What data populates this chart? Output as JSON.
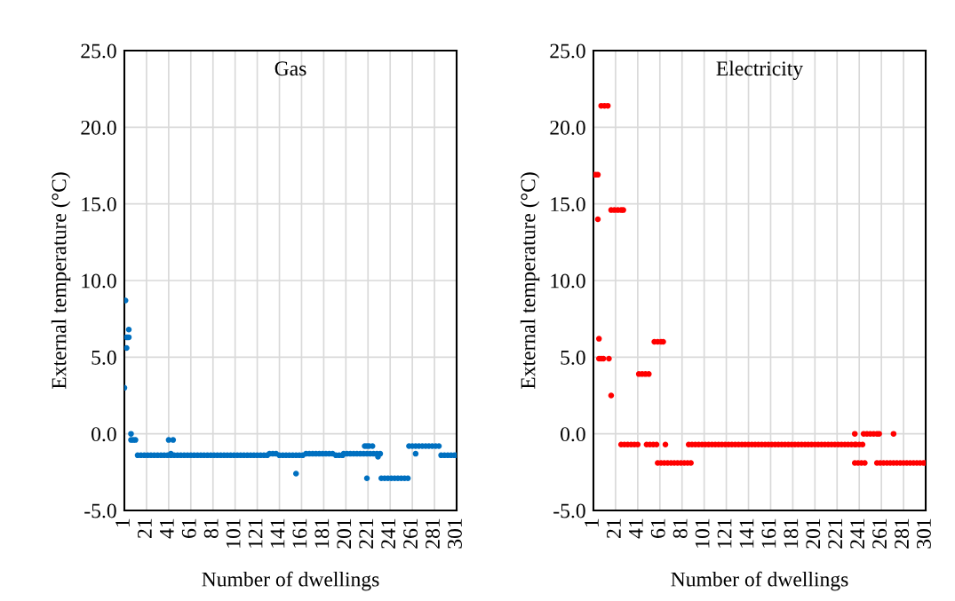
{
  "chart_data": [
    {
      "type": "scatter",
      "title": "Gas",
      "xlabel": "Number of dwellings",
      "ylabel": "External temperature (°C)",
      "grid": true,
      "marker": "circle",
      "xlim": [
        1,
        301
      ],
      "xticks": [
        1,
        21,
        41,
        61,
        81,
        101,
        121,
        141,
        161,
        181,
        201,
        221,
        241,
        261,
        281,
        301
      ],
      "ylim": [
        -5,
        25
      ],
      "yticks": [
        {
          "value": -5,
          "label": "-5.0"
        },
        {
          "value": 0,
          "label": "0.0"
        },
        {
          "value": 5,
          "label": "5.0"
        },
        {
          "value": 10,
          "label": "10.0"
        },
        {
          "value": 15,
          "label": "15.0"
        },
        {
          "value": 20,
          "label": "20.0"
        },
        {
          "value": 25,
          "label": "25.0"
        }
      ],
      "series": [
        {
          "color": "#0070c0",
          "x": [
            1,
            2,
            3,
            3,
            4,
            5,
            5,
            7,
            7,
            9,
            11,
            13,
            16,
            19,
            22,
            25,
            28,
            31,
            34,
            37,
            40,
            43,
            46,
            49,
            52,
            55,
            58,
            61,
            64,
            67,
            70,
            73,
            76,
            79,
            82,
            85,
            88,
            91,
            94,
            97,
            100,
            103,
            106,
            109,
            112,
            115,
            118,
            121,
            124,
            127,
            130,
            41,
            45,
            43,
            132,
            135,
            138,
            141,
            144,
            147,
            150,
            153,
            156,
            159,
            162,
            156,
            165,
            168,
            171,
            174,
            177,
            180,
            183,
            186,
            189,
            192,
            195,
            198,
            199,
            202,
            205,
            208,
            211,
            214,
            217,
            218,
            220,
            222,
            225,
            220,
            220,
            223,
            226,
            229,
            232,
            230,
            233,
            236,
            239,
            242,
            245,
            248,
            251,
            254,
            257,
            258,
            261,
            264,
            267,
            270,
            273,
            276,
            279,
            282,
            285,
            264,
            287,
            290,
            293,
            296,
            299,
            301
          ],
          "values": [
            3.0,
            8.7,
            5.6,
            6.3,
            6.3,
            6.3,
            6.8,
            0.0,
            -0.4,
            -0.4,
            -0.4,
            -1.4,
            -1.4,
            -1.4,
            -1.4,
            -1.4,
            -1.4,
            -1.4,
            -1.4,
            -1.4,
            -1.4,
            -1.4,
            -1.4,
            -1.4,
            -1.4,
            -1.4,
            -1.4,
            -1.4,
            -1.4,
            -1.4,
            -1.4,
            -1.4,
            -1.4,
            -1.4,
            -1.4,
            -1.4,
            -1.4,
            -1.4,
            -1.4,
            -1.4,
            -1.4,
            -1.4,
            -1.4,
            -1.4,
            -1.4,
            -1.4,
            -1.4,
            -1.4,
            -1.4,
            -1.4,
            -1.4,
            -0.4,
            -0.4,
            -1.3,
            -1.3,
            -1.3,
            -1.3,
            -1.4,
            -1.4,
            -1.4,
            -1.4,
            -1.4,
            -1.4,
            -1.4,
            -1.4,
            -2.6,
            -1.3,
            -1.3,
            -1.3,
            -1.3,
            -1.3,
            -1.3,
            -1.3,
            -1.3,
            -1.3,
            -1.4,
            -1.4,
            -1.4,
            -1.3,
            -1.3,
            -1.3,
            -1.3,
            -1.3,
            -1.3,
            -1.3,
            -0.8,
            -0.8,
            -0.8,
            -0.8,
            -2.9,
            -1.3,
            -1.3,
            -1.3,
            -1.3,
            -1.3,
            -1.5,
            -2.9,
            -2.9,
            -2.9,
            -2.9,
            -2.9,
            -2.9,
            -2.9,
            -2.9,
            -2.9,
            -0.8,
            -0.8,
            -0.8,
            -0.8,
            -0.8,
            -0.8,
            -0.8,
            -0.8,
            -0.8,
            -0.8,
            -1.3,
            -1.4,
            -1.4,
            -1.4,
            -1.4,
            -1.4,
            -1.4
          ]
        }
      ]
    },
    {
      "type": "scatter",
      "title": "Electricity",
      "xlabel": "Number of dwellings",
      "ylabel": "External temperature (°C)",
      "grid": true,
      "marker": "circle",
      "xlim": [
        1,
        301
      ],
      "xticks": [
        1,
        21,
        41,
        61,
        81,
        101,
        121,
        141,
        161,
        181,
        201,
        221,
        241,
        261,
        281,
        301
      ],
      "ylim": [
        -5,
        25
      ],
      "yticks": [
        {
          "value": -5,
          "label": "-5.0"
        },
        {
          "value": 0,
          "label": "0.0"
        },
        {
          "value": 5,
          "label": "5.0"
        },
        {
          "value": 10,
          "label": "10.0"
        },
        {
          "value": 15,
          "label": "15.0"
        },
        {
          "value": 20,
          "label": "20.0"
        },
        {
          "value": 25,
          "label": "25.0"
        }
      ],
      "series": [
        {
          "color": "#ff0000",
          "x": [
            1,
            3,
            5,
            5,
            6,
            6,
            8,
            10,
            8,
            11,
            14,
            15,
            17,
            17,
            20,
            23,
            26,
            28,
            26,
            29,
            32,
            35,
            38,
            41,
            42,
            45,
            48,
            51,
            49,
            52,
            55,
            58,
            56,
            59,
            62,
            64,
            66,
            59,
            62,
            65,
            68,
            71,
            74,
            77,
            80,
            83,
            86,
            89,
            87,
            90,
            93,
            96,
            99,
            102,
            105,
            108,
            111,
            114,
            117,
            120,
            123,
            126,
            129,
            132,
            135,
            138,
            141,
            144,
            147,
            150,
            153,
            156,
            159,
            162,
            165,
            168,
            171,
            174,
            177,
            180,
            183,
            186,
            189,
            192,
            195,
            198,
            201,
            204,
            207,
            210,
            213,
            216,
            219,
            222,
            225,
            228,
            231,
            234,
            237,
            237,
            238,
            241,
            244,
            237,
            240,
            243,
            246,
            245,
            248,
            251,
            254,
            257,
            259,
            272,
            257,
            260,
            263,
            266,
            269,
            272,
            275,
            278,
            281,
            284,
            287,
            290,
            293,
            296,
            299,
            301
          ],
          "values": [
            16.9,
            16.9,
            16.9,
            14.0,
            6.2,
            4.9,
            4.9,
            4.9,
            21.4,
            21.4,
            21.4,
            4.9,
            2.5,
            14.6,
            14.6,
            14.6,
            14.6,
            14.6,
            -0.7,
            -0.7,
            -0.7,
            -0.7,
            -0.7,
            -0.7,
            3.9,
            3.9,
            3.9,
            3.9,
            -0.7,
            -0.7,
            -0.7,
            -0.7,
            6.0,
            6.0,
            6.0,
            6.0,
            -0.7,
            -1.9,
            -1.9,
            -1.9,
            -1.9,
            -1.9,
            -1.9,
            -1.9,
            -1.9,
            -1.9,
            -1.9,
            -1.9,
            -0.7,
            -0.7,
            -0.7,
            -0.7,
            -0.7,
            -0.7,
            -0.7,
            -0.7,
            -0.7,
            -0.7,
            -0.7,
            -0.7,
            -0.7,
            -0.7,
            -0.7,
            -0.7,
            -0.7,
            -0.7,
            -0.7,
            -0.7,
            -0.7,
            -0.7,
            -0.7,
            -0.7,
            -0.7,
            -0.7,
            -0.7,
            -0.7,
            -0.7,
            -0.7,
            -0.7,
            -0.7,
            -0.7,
            -0.7,
            -0.7,
            -0.7,
            -0.7,
            -0.7,
            -0.7,
            -0.7,
            -0.7,
            -0.7,
            -0.7,
            -0.7,
            -0.7,
            -0.7,
            -0.7,
            -0.7,
            -0.7,
            -0.7,
            -0.7,
            0.0,
            -0.7,
            -0.7,
            -0.7,
            -1.9,
            -1.9,
            -1.9,
            -1.9,
            0.0,
            0.0,
            0.0,
            0.0,
            0.0,
            0.0,
            0.0,
            -1.9,
            -1.9,
            -1.9,
            -1.9,
            -1.9,
            -1.9,
            -1.9,
            -1.9,
            -1.9,
            -1.9,
            -1.9,
            -1.9,
            -1.9,
            -1.9,
            -1.9,
            -1.9
          ]
        }
      ]
    }
  ]
}
